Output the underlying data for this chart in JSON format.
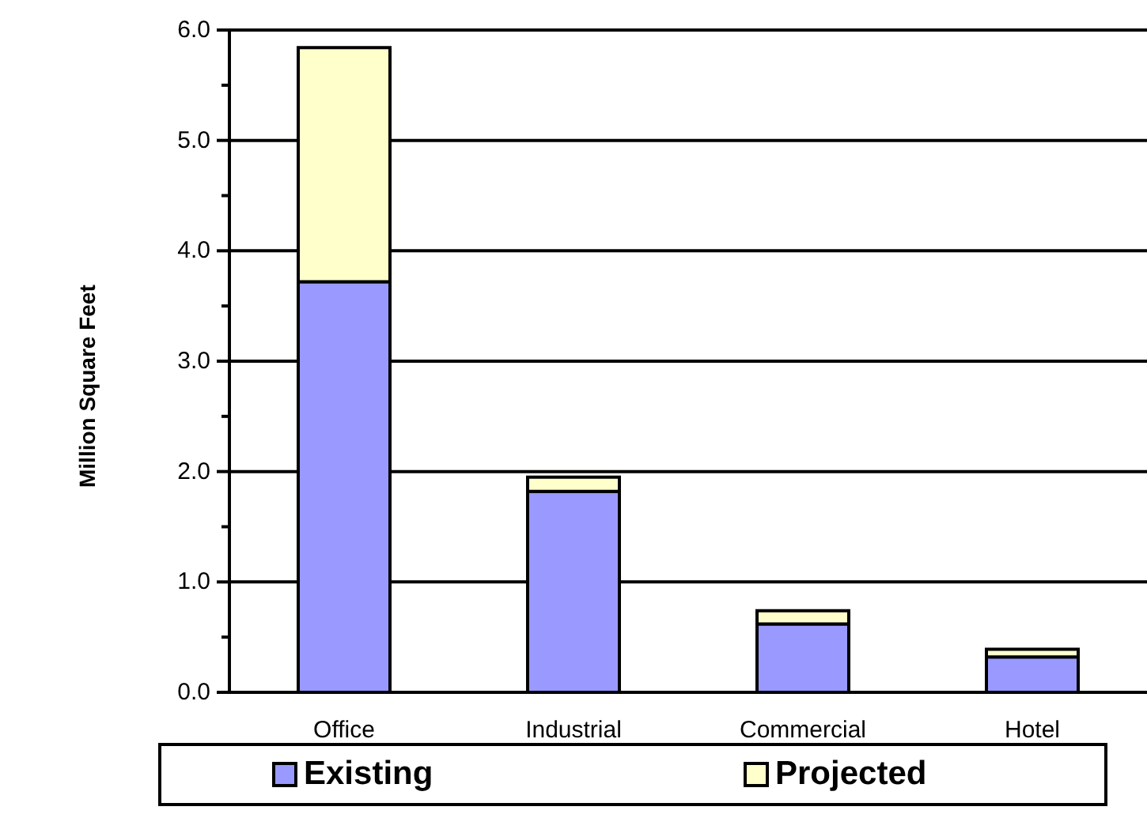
{
  "chart_data": {
    "type": "bar",
    "stacked": true,
    "ylabel": "Million Square Feet",
    "categories": [
      "Office",
      "Industrial",
      "Commercial",
      "Hotel"
    ],
    "series": [
      {
        "name": "Existing",
        "color": "#9999ff",
        "values": [
          3.72,
          1.82,
          0.62,
          0.32
        ]
      },
      {
        "name": "Projected",
        "color": "#ffffcc",
        "values": [
          2.12,
          0.13,
          0.12,
          0.07
        ]
      }
    ],
    "ylim": [
      0,
      6
    ],
    "yticks": [
      {
        "value": 0,
        "label": "0.0"
      },
      {
        "value": 0.5,
        "label": null
      },
      {
        "value": 1,
        "label": "1.0"
      },
      {
        "value": 1.5,
        "label": null
      },
      {
        "value": 2,
        "label": "2.0"
      },
      {
        "value": 2.5,
        "label": null
      },
      {
        "value": 3,
        "label": "3.0"
      },
      {
        "value": 3.5,
        "label": null
      },
      {
        "value": 4,
        "label": "4.0"
      },
      {
        "value": 4.5,
        "label": null
      },
      {
        "value": 5,
        "label": "5.0"
      },
      {
        "value": 5.5,
        "label": null
      },
      {
        "value": 6,
        "label": "6.0"
      }
    ],
    "grid": "y",
    "legend": "bottom"
  }
}
